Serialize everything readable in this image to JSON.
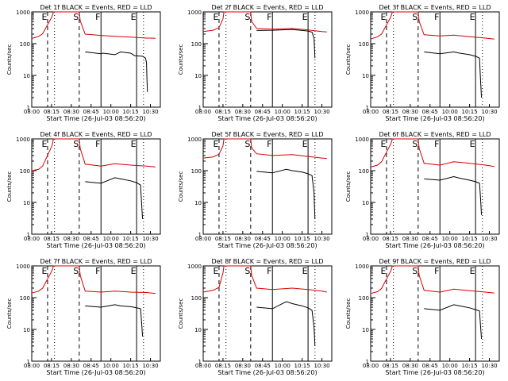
{
  "page": {
    "x_axis_label": "Start Time (26-Jul-03 08:56:20)",
    "y_axis_label": "Counts/sec"
  },
  "chart_data": [
    {
      "type": "line",
      "detector": "1f",
      "title": "Det 1f BLACK = Events, RED = LLD",
      "xlabel": "Start Time (26-Jul-03 08:56:20)",
      "ylabel": "Counts/sec",
      "xticks": [
        "08:00",
        "08:15",
        "08:30",
        "08:45",
        "10:00",
        "10:15",
        "10:30"
      ],
      "yticks": [
        "1",
        "10",
        "100",
        "1000"
      ],
      "yscale": "log",
      "ylim": [
        1,
        1000
      ],
      "markers": [
        {
          "label": "E"
        },
        {
          "label": "S"
        },
        {
          "label": "F"
        },
        {
          "label": "E"
        }
      ],
      "series": [
        {
          "color": "#d40000",
          "role": "LLD",
          "x": [
            0,
            0.35,
            0.55,
            1.02,
            1.1,
            1.15,
            2.4,
            2.45,
            2.7,
            3.5,
            4.2,
            5.0,
            5.8,
            6.0,
            6.25
          ],
          "y": [
            145,
            170,
            205,
            700,
            1000,
            1000,
            1000,
            520,
            200,
            182,
            170,
            160,
            150,
            150,
            148
          ]
        },
        {
          "color": "#000000",
          "role": "Events",
          "x": [
            2.7,
            3.5,
            3.6,
            4.2,
            4.5,
            5.0,
            5.2,
            5.6,
            5.75,
            5.8,
            5.82,
            5.85
          ],
          "y": [
            55,
            48,
            50,
            45,
            55,
            50,
            42,
            40,
            35,
            25,
            8,
            3
          ]
        }
      ]
    },
    {
      "type": "line",
      "detector": "2f",
      "title": "Det 2f BLACK = Events, RED = LLD",
      "xlabel": "Start Time (26-Jul-03 08:56:20)",
      "ylabel": "Counts/sec",
      "xticks": [
        "08:00",
        "08:15",
        "08:30",
        "08:45",
        "10:00",
        "10:15",
        "10:30"
      ],
      "yticks": [
        "1",
        "10",
        "100",
        "1000"
      ],
      "yscale": "log",
      "ylim": [
        1,
        1000
      ],
      "markers": [
        {
          "label": "E"
        },
        {
          "label": "S"
        },
        {
          "label": "F"
        },
        {
          "label": "E"
        }
      ],
      "series": [
        {
          "color": "#d40000",
          "role": "LLD",
          "x": [
            0,
            0.5,
            0.8,
            1.0,
            1.05,
            1.1,
            2.4,
            2.45,
            2.7,
            3.5,
            4.5,
            5.3,
            6.0,
            6.25
          ],
          "y": [
            240,
            265,
            320,
            600,
            1000,
            1000,
            1000,
            500,
            300,
            285,
            300,
            270,
            240,
            235
          ]
        },
        {
          "color": "#000000",
          "role": "Events",
          "x": [
            2.7,
            3.5,
            4.5,
            5.3,
            5.5,
            5.6,
            5.65
          ],
          "y": [
            260,
            265,
            280,
            250,
            230,
            150,
            35
          ]
        }
      ]
    },
    {
      "type": "line",
      "detector": "3f",
      "title": "Det 3f BLACK = Events, RED = LLD",
      "xlabel": "Start Time (26-Jul-03 08:56:20)",
      "ylabel": "Counts/sec",
      "xticks": [
        "08:00",
        "08:15",
        "08:30",
        "08:45",
        "10:00",
        "10:15",
        "10:30"
      ],
      "yticks": [
        "1",
        "10",
        "100",
        "1000"
      ],
      "yscale": "log",
      "ylim": [
        1,
        1000
      ],
      "markers": [
        {
          "label": "E"
        },
        {
          "label": "S"
        },
        {
          "label": "F"
        },
        {
          "label": "E"
        }
      ],
      "series": [
        {
          "color": "#d40000",
          "role": "LLD",
          "x": [
            0,
            0.35,
            0.55,
            1.02,
            1.1,
            1.15,
            2.4,
            2.45,
            2.7,
            3.5,
            4.2,
            5.0,
            5.8,
            6.25
          ],
          "y": [
            140,
            165,
            200,
            700,
            1000,
            1000,
            1000,
            500,
            190,
            175,
            185,
            165,
            150,
            140
          ]
        },
        {
          "color": "#000000",
          "role": "Events",
          "x": [
            2.7,
            3.5,
            4.2,
            4.5,
            5.0,
            5.3,
            5.5,
            5.55,
            5.6
          ],
          "y": [
            55,
            48,
            55,
            50,
            45,
            40,
            35,
            8,
            2
          ]
        }
      ]
    },
    {
      "type": "line",
      "detector": "4f",
      "title": "Det 4f BLACK = Events, RED = LLD",
      "xlabel": "Start Time (26-Jul-03 08:56:20)",
      "ylabel": "Counts/sec",
      "xticks": [
        "08:00",
        "08:15",
        "08:30",
        "08:45",
        "10:00",
        "10:15",
        "10:30"
      ],
      "yticks": [
        "1",
        "10",
        "100",
        "1000"
      ],
      "yscale": "log",
      "ylim": [
        1,
        1000
      ],
      "markers": [
        {
          "label": "E"
        },
        {
          "label": "S"
        },
        {
          "label": "F"
        },
        {
          "label": "E"
        }
      ],
      "series": [
        {
          "color": "#d40000",
          "role": "LLD",
          "x": [
            0,
            0.35,
            0.55,
            1.02,
            1.1,
            1.15,
            2.4,
            2.45,
            2.7,
            3.5,
            4.2,
            5.0,
            5.8,
            6.25
          ],
          "y": [
            100,
            110,
            140,
            600,
            1000,
            1000,
            1000,
            500,
            160,
            140,
            165,
            150,
            140,
            130
          ]
        },
        {
          "color": "#000000",
          "role": "Events",
          "x": [
            2.7,
            3.5,
            4.2,
            4.5,
            5.0,
            5.3,
            5.5,
            5.55,
            5.6
          ],
          "y": [
            45,
            40,
            60,
            55,
            48,
            42,
            35,
            10,
            3
          ]
        }
      ]
    },
    {
      "type": "line",
      "detector": "5f",
      "title": "Det 5f BLACK = Events, RED = LLD",
      "xlabel": "Start Time (26-Jul-03 08:56:20)",
      "ylabel": "Counts/sec",
      "xticks": [
        "08:00",
        "08:15",
        "08:30",
        "08:45",
        "10:00",
        "10:15",
        "10:30"
      ],
      "yticks": [
        "1",
        "10",
        "100",
        "1000"
      ],
      "yscale": "log",
      "ylim": [
        1,
        1000
      ],
      "markers": [
        {
          "label": "E"
        },
        {
          "label": "S"
        },
        {
          "label": "F"
        },
        {
          "label": "E"
        }
      ],
      "series": [
        {
          "color": "#d40000",
          "role": "LLD",
          "x": [
            0,
            0.5,
            0.8,
            1.0,
            1.05,
            1.1,
            2.4,
            2.45,
            2.7,
            3.5,
            4.5,
            5.3,
            6.0,
            6.25
          ],
          "y": [
            250,
            270,
            330,
            600,
            1000,
            1000,
            1000,
            520,
            340,
            300,
            320,
            280,
            250,
            240
          ]
        },
        {
          "color": "#000000",
          "role": "Events",
          "x": [
            2.7,
            3.5,
            4.2,
            4.5,
            5.0,
            5.3,
            5.5,
            5.6,
            5.65
          ],
          "y": [
            95,
            85,
            110,
            100,
            90,
            80,
            70,
            20,
            3
          ]
        }
      ]
    },
    {
      "type": "line",
      "detector": "6f",
      "title": "Det 6f BLACK = Events, RED = LLD",
      "xlabel": "Start Time (26-Jul-03 08:56:20)",
      "ylabel": "Counts/sec",
      "xticks": [
        "08:00",
        "08:15",
        "08:30",
        "08:45",
        "10:00",
        "10:15",
        "10:30"
      ],
      "yticks": [
        "1",
        "10",
        "100",
        "1000"
      ],
      "yscale": "log",
      "ylim": [
        1,
        1000
      ],
      "markers": [
        {
          "label": "E"
        },
        {
          "label": "S"
        },
        {
          "label": "F"
        },
        {
          "label": "E"
        }
      ],
      "series": [
        {
          "color": "#d40000",
          "role": "LLD",
          "x": [
            0,
            0.35,
            0.55,
            1.02,
            1.1,
            1.15,
            2.4,
            2.45,
            2.7,
            3.5,
            4.2,
            5.0,
            5.8,
            6.25
          ],
          "y": [
            130,
            150,
            190,
            700,
            1000,
            1000,
            1000,
            500,
            170,
            150,
            190,
            170,
            150,
            135
          ]
        },
        {
          "color": "#000000",
          "role": "Events",
          "x": [
            2.7,
            3.5,
            4.2,
            4.5,
            5.0,
            5.3,
            5.5,
            5.55,
            5.6
          ],
          "y": [
            55,
            50,
            65,
            58,
            50,
            45,
            40,
            15,
            4
          ]
        }
      ]
    },
    {
      "type": "line",
      "detector": "7f",
      "title": "Det 7f BLACK = Events, RED = LLD",
      "xlabel": "Start Time (26-Jul-03 08:56:20)",
      "ylabel": "Counts/sec",
      "xticks": [
        "08:00",
        "08:15",
        "08:30",
        "08:45",
        "10:00",
        "10:15",
        "10:30"
      ],
      "yticks": [
        "1",
        "10",
        "100",
        "1000"
      ],
      "yscale": "log",
      "ylim": [
        1,
        1000
      ],
      "markers": [
        {
          "label": "E"
        },
        {
          "label": "S"
        },
        {
          "label": "F"
        },
        {
          "label": "E"
        }
      ],
      "series": [
        {
          "color": "#d40000",
          "role": "LLD",
          "x": [
            0,
            0.35,
            0.55,
            1.02,
            1.1,
            1.15,
            2.4,
            2.45,
            2.7,
            3.5,
            4.2,
            5.0,
            5.8,
            6.25
          ],
          "y": [
            140,
            160,
            200,
            700,
            1000,
            1000,
            1000,
            500,
            160,
            150,
            160,
            150,
            145,
            135
          ]
        },
        {
          "color": "#000000",
          "role": "Events",
          "x": [
            2.7,
            3.5,
            4.2,
            4.5,
            5.0,
            5.3,
            5.5,
            5.55,
            5.6
          ],
          "y": [
            55,
            50,
            60,
            55,
            52,
            48,
            45,
            18,
            6
          ]
        }
      ]
    },
    {
      "type": "line",
      "detector": "8f",
      "title": "Det 8f BLACK = Events, RED = LLD",
      "xlabel": "Start Time (26-Jul-03 08:56:20)",
      "ylabel": "Counts/sec",
      "xticks": [
        "08:00",
        "08:15",
        "08:30",
        "08:45",
        "10:00",
        "10:15",
        "10:30"
      ],
      "yticks": [
        "1",
        "10",
        "100",
        "1000"
      ],
      "yscale": "log",
      "ylim": [
        1,
        1000
      ],
      "markers": [
        {
          "label": "E"
        },
        {
          "label": "S"
        },
        {
          "label": "F"
        },
        {
          "label": "E"
        }
      ],
      "series": [
        {
          "color": "#d40000",
          "role": "LLD",
          "x": [
            0,
            0.5,
            0.8,
            1.0,
            1.05,
            1.1,
            2.4,
            2.45,
            2.7,
            3.5,
            4.5,
            5.3,
            6.0,
            6.25
          ],
          "y": [
            150,
            170,
            210,
            600,
            1000,
            1000,
            1000,
            500,
            200,
            180,
            200,
            180,
            160,
            150
          ]
        },
        {
          "color": "#000000",
          "role": "Events",
          "x": [
            2.7,
            3.5,
            4.2,
            4.5,
            5.0,
            5.3,
            5.5,
            5.6,
            5.65
          ],
          "y": [
            50,
            45,
            75,
            65,
            55,
            48,
            40,
            12,
            3
          ]
        }
      ]
    },
    {
      "type": "line",
      "detector": "9f",
      "title": "Det 9f BLACK = Events, RED = LLD",
      "xlabel": "Start Time (26-Jul-03 08:56:20)",
      "ylabel": "Counts/sec",
      "xticks": [
        "08:00",
        "08:15",
        "08:30",
        "08:45",
        "10:00",
        "10:15",
        "10:30"
      ],
      "yticks": [
        "1",
        "10",
        "100",
        "1000"
      ],
      "yscale": "log",
      "ylim": [
        1,
        1000
      ],
      "markers": [
        {
          "label": "E"
        },
        {
          "label": "S"
        },
        {
          "label": "F"
        },
        {
          "label": "E"
        }
      ],
      "series": [
        {
          "color": "#d40000",
          "role": "LLD",
          "x": [
            0,
            0.35,
            0.55,
            1.02,
            1.1,
            1.15,
            2.4,
            2.45,
            2.7,
            3.5,
            4.2,
            5.0,
            5.8,
            6.25
          ],
          "y": [
            135,
            155,
            195,
            700,
            1000,
            1000,
            1000,
            500,
            170,
            150,
            185,
            165,
            150,
            140
          ]
        },
        {
          "color": "#000000",
          "role": "Events",
          "x": [
            2.7,
            3.5,
            4.2,
            4.5,
            5.0,
            5.3,
            5.5,
            5.55,
            5.6
          ],
          "y": [
            45,
            40,
            60,
            55,
            48,
            42,
            38,
            14,
            5
          ]
        }
      ]
    }
  ]
}
